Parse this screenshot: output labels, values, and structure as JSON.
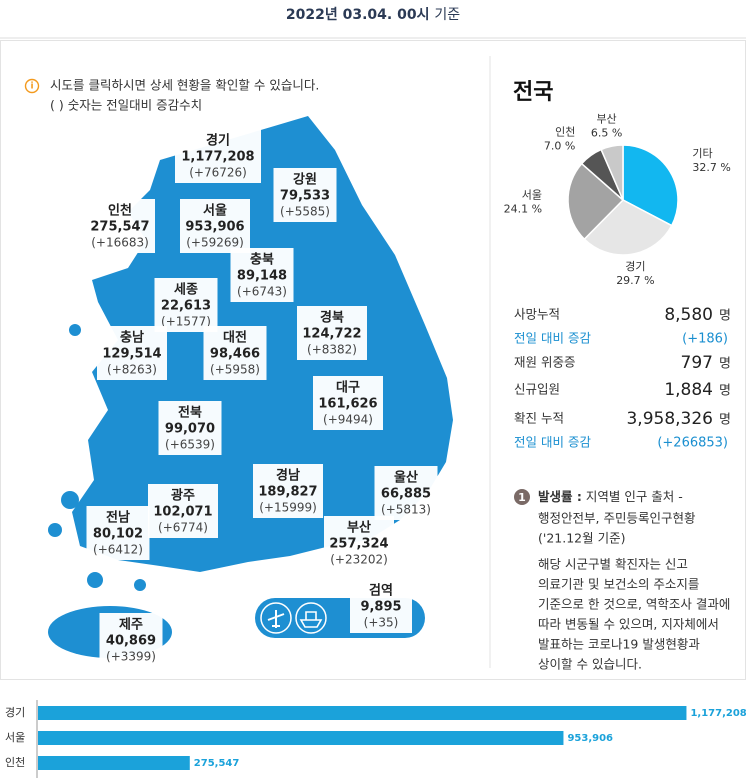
{
  "header": {
    "date": "2022년 03.04. 00시",
    "suffix": "기준"
  },
  "info": [
    "시도를 클릭하시면 상세 현황을 확인할 수 있습니다.",
    "( ) 숫자는 전일대비 증감수치"
  ],
  "regions": [
    {
      "name": "경기",
      "total": "1,177,208",
      "change": "(+76726)"
    },
    {
      "name": "강원",
      "total": "79,533",
      "change": "(+5585)"
    },
    {
      "name": "인천",
      "total": "275,547",
      "change": "(+16683)"
    },
    {
      "name": "서울",
      "total": "953,906",
      "change": "(+59269)"
    },
    {
      "name": "충북",
      "total": "89,148",
      "change": "(+6743)"
    },
    {
      "name": "세종",
      "total": "22,613",
      "change": "(+1577)"
    },
    {
      "name": "경북",
      "total": "124,722",
      "change": "(+8382)"
    },
    {
      "name": "충남",
      "total": "129,514",
      "change": "(+8263)"
    },
    {
      "name": "대전",
      "total": "98,466",
      "change": "(+5958)"
    },
    {
      "name": "대구",
      "total": "161,626",
      "change": "(+9494)"
    },
    {
      "name": "전북",
      "total": "99,070",
      "change": "(+6539)"
    },
    {
      "name": "경남",
      "total": "189,827",
      "change": "(+15999)"
    },
    {
      "name": "울산",
      "total": "66,885",
      "change": "(+5813)"
    },
    {
      "name": "광주",
      "total": "102,071",
      "change": "(+6774)"
    },
    {
      "name": "전남",
      "total": "80,102",
      "change": "(+6412)"
    },
    {
      "name": "부산",
      "total": "257,324",
      "change": "(+23202)"
    },
    {
      "name": "검역",
      "total": "9,895",
      "change": "(+35)"
    },
    {
      "name": "제주",
      "total": "40,869",
      "change": "(+3399)"
    }
  ],
  "summary_title": "전국",
  "chart_data": [
    {
      "type": "pie",
      "categories": [
        "기타",
        "경기",
        "서울",
        "인천",
        "부산"
      ],
      "values": [
        32.7,
        29.7,
        24.1,
        7.0,
        6.5
      ],
      "value_labels": [
        "32.7 %",
        "29.7 %",
        "24.1 %",
        "7.0 %",
        "6.5 %"
      ],
      "colors": [
        "#12b7f0",
        "#e6e6e6",
        "#a3a3a3",
        "#555555",
        "#c9c9c9"
      ]
    },
    {
      "type": "bar",
      "categories": [
        "경기",
        "서울",
        "인천"
      ],
      "values": [
        1177208,
        953906,
        275547
      ],
      "value_labels": [
        "1,177,208",
        "953,906",
        "275,547"
      ],
      "xlim": [
        0,
        1180000
      ],
      "color": "#1ba2da"
    }
  ],
  "stats": [
    {
      "label": "사망누적",
      "value": "8,580",
      "unit": "명"
    },
    {
      "label": "전일 대비 증감",
      "value": "(+186)"
    },
    {
      "label": "재원 위중증",
      "value": "797",
      "unit": "명"
    },
    {
      "label": "신규입원",
      "value": "1,884",
      "unit": "명"
    },
    {
      "label": "확진 누적",
      "value": "3,958,326",
      "unit": "명"
    },
    {
      "label": "전일 대비 증감",
      "value": "(+266853)"
    }
  ],
  "note": {
    "badge": "1",
    "term": "발생률 :",
    "lines": [
      "지역별 인구 출처 -",
      "행정안전부, 주민등록인구현황",
      "('21.12월 기준)"
    ]
  },
  "disclaimer": [
    "해당 시군구별 확진자는 신고",
    "의료기관 및 보건소의 주소지를",
    "기준으로 한 것으로, 역학조사 결과에",
    "따라 변동될 수 있으며, 지자체에서",
    "발표하는 코로나19 발생현황과",
    "상이할 수 있습니다."
  ]
}
